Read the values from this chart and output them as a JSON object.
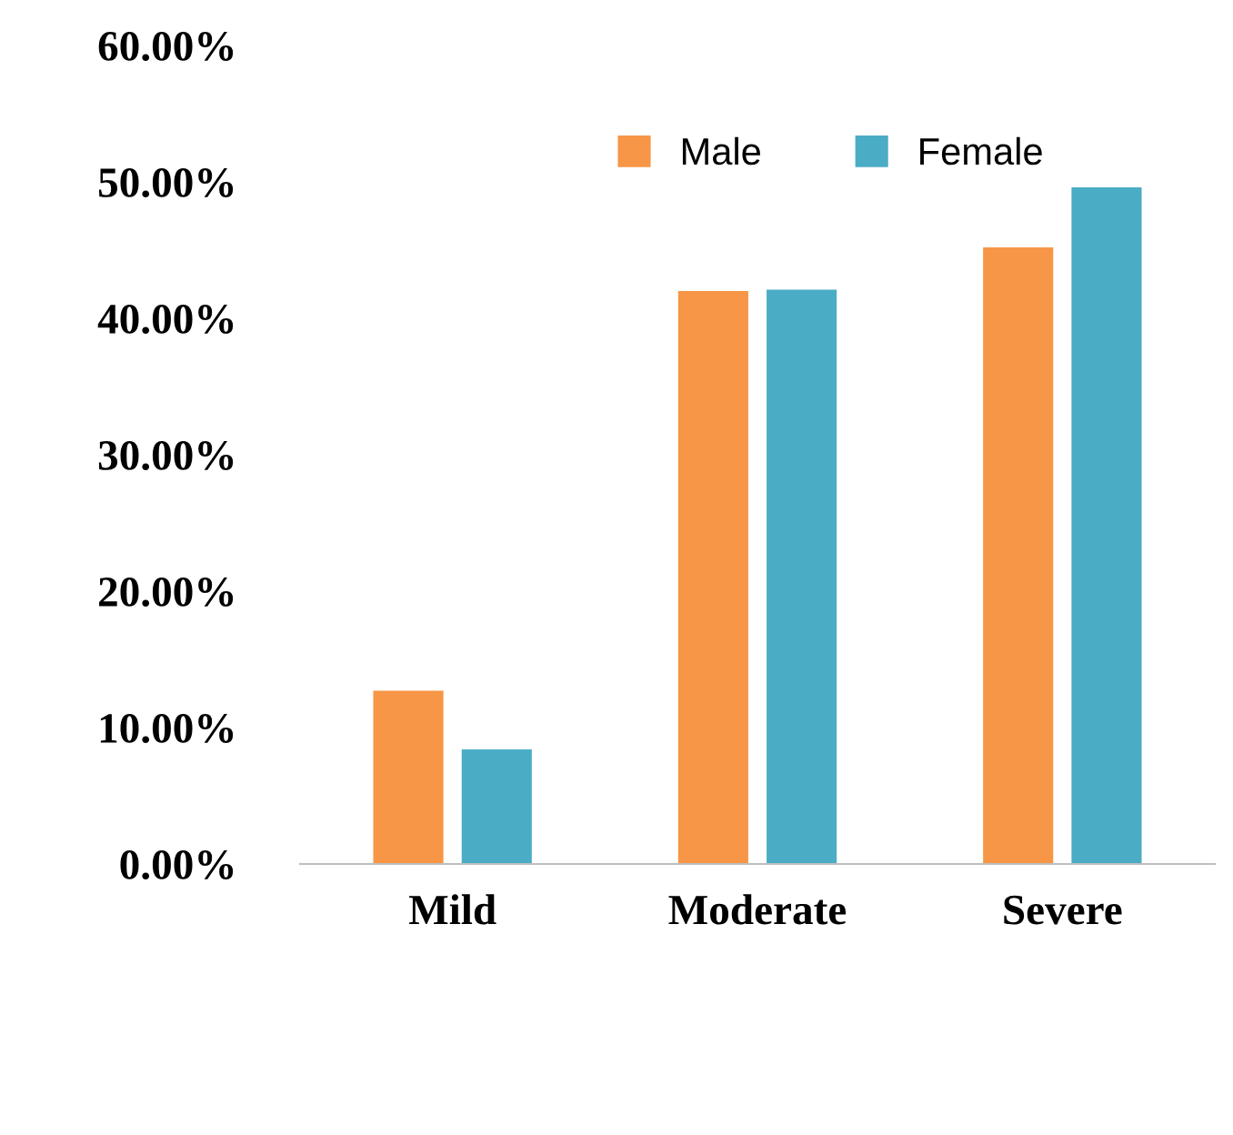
{
  "chart_data": {
    "type": "bar",
    "categories": [
      "Mild",
      "Moderate",
      "Severe"
    ],
    "series": [
      {
        "name": "Male",
        "color": "#f79646",
        "values": [
          12.7,
          42.0,
          45.2
        ]
      },
      {
        "name": "Female",
        "color": "#4bacc6",
        "values": [
          8.4,
          42.1,
          49.6
        ]
      }
    ],
    "ylim": [
      0,
      60
    ],
    "yticks": [
      {
        "value": 0,
        "label": "0.00%"
      },
      {
        "value": 10,
        "label": "10.00%"
      },
      {
        "value": 20,
        "label": "20.00%"
      },
      {
        "value": 30,
        "label": "30.00%"
      },
      {
        "value": 40,
        "label": "40.00%"
      },
      {
        "value": 50,
        "label": "50.00%"
      },
      {
        "value": 60,
        "label": "60.00%"
      }
    ],
    "legend": "top right",
    "grid": false
  }
}
